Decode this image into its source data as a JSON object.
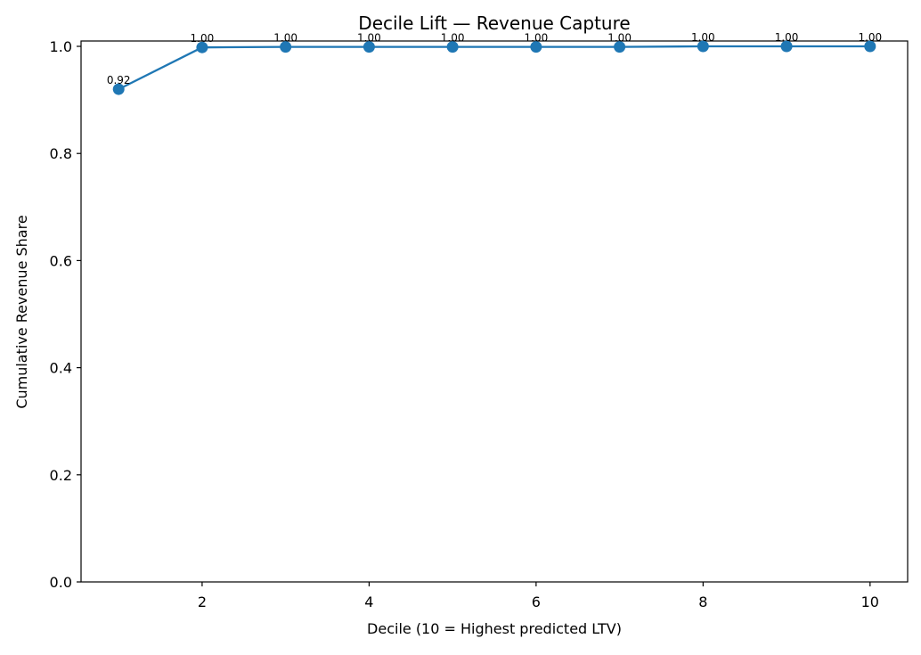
{
  "chart_data": {
    "type": "line",
    "title": "Decile Lift — Revenue Capture",
    "xlabel": "Decile (10 = Highest predicted LTV)",
    "ylabel": "Cumulative Revenue Share",
    "x": [
      1,
      2,
      3,
      4,
      5,
      6,
      7,
      8,
      9,
      10
    ],
    "series": [
      {
        "values": [
          0.92,
          0.998,
          0.999,
          0.999,
          0.999,
          0.999,
          0.999,
          1.0,
          1.0,
          1.0
        ],
        "data_labels": [
          "0.92",
          "1.00",
          "1.00",
          "1.00",
          "1.00",
          "1.00",
          "1.00",
          "1.00",
          "1.00",
          "1.00"
        ],
        "color": "#1f77b4"
      }
    ],
    "xlim": [
      0.55,
      10.45
    ],
    "ylim": [
      0.0,
      1.01
    ],
    "xticks": [
      2,
      4,
      6,
      8,
      10
    ],
    "xtick_labels": [
      "2",
      "4",
      "6",
      "8",
      "10"
    ],
    "yticks": [
      0.0,
      0.2,
      0.4,
      0.6,
      0.8,
      1.0
    ],
    "ytick_labels": [
      "0.0",
      "0.2",
      "0.4",
      "0.6",
      "0.8",
      "1.0"
    ],
    "grid": false,
    "legend": false,
    "marker": "circle"
  }
}
